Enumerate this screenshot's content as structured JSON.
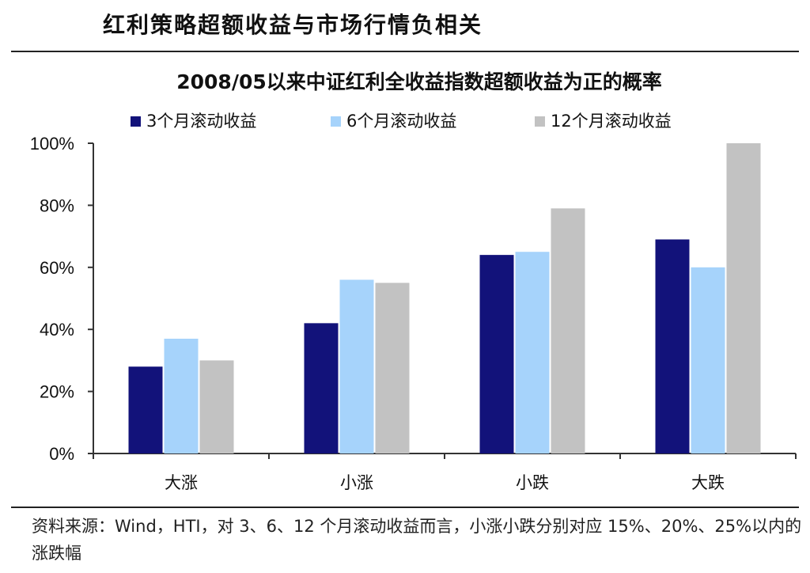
{
  "heading": "红利策略超额收益与市场行情负相关",
  "source_note": "资料来源：Wind，HTI，对 3、6、12 个月滚动收益而言，小涨小跌分别对应 15%、20%、25%以内的涨跌幅",
  "colors": {
    "series1": "#12127a",
    "series2": "#a6d3fb",
    "series3": "#c2c2c2"
  },
  "chart_data": {
    "type": "bar",
    "title": "2008/05以来中证红利全收益指数超额收益为正的概率",
    "categories": [
      "大涨",
      "小涨",
      "小跌",
      "大跌"
    ],
    "series": [
      {
        "name": "3个月滚动收益",
        "values": [
          0.28,
          0.42,
          0.64,
          0.69
        ]
      },
      {
        "name": "6个月滚动收益",
        "values": [
          0.37,
          0.56,
          0.65,
          0.6
        ]
      },
      {
        "name": "12个月滚动收益",
        "values": [
          0.3,
          0.55,
          0.79,
          1.0
        ]
      }
    ],
    "ylim": [
      0,
      1
    ],
    "yticks": [
      "0%",
      "20%",
      "40%",
      "60%",
      "80%",
      "100%"
    ],
    "legend_position": "top",
    "grid": false
  }
}
